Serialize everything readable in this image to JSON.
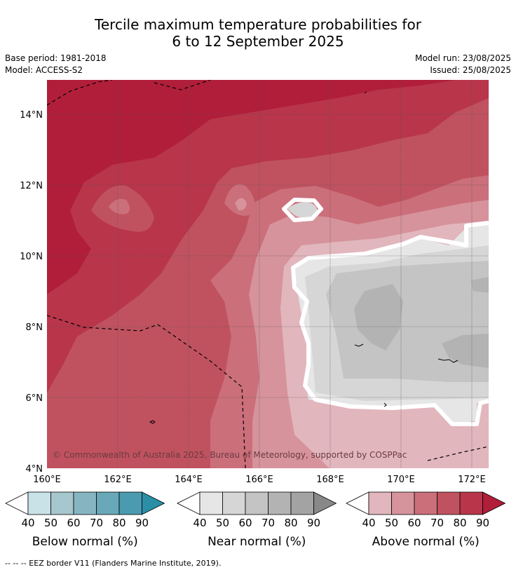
{
  "header": {
    "title_line1": "Tercile maximum temperature probabilities for",
    "title_line2": "6 to 12 September 2025",
    "base_period": "Base period: 1981-2018",
    "model": "Model: ACCESS-S2",
    "model_run": "Model run: 23/08/2025",
    "issued": "Issued: 25/08/2025"
  },
  "map": {
    "lat_labels": [
      "14°N",
      "12°N",
      "10°N",
      "8°N",
      "6°N",
      "4°N"
    ],
    "lon_labels": [
      "160°E",
      "162°E",
      "164°E",
      "166°E",
      "168°E",
      "170°E",
      "172°E"
    ],
    "watermark": "© Commonwealth of Australia 2025, Bureau of Meteorology, supported by COSPPac"
  },
  "colorbars": [
    {
      "title": "Below normal (%)",
      "ticks": [
        "40",
        "50",
        "60",
        "70",
        "80",
        "90"
      ],
      "colors": [
        "#ffffff",
        "#c9e2e8",
        "#a6c7cd",
        "#86b5c2",
        "#69a8b8",
        "#4b9bb0",
        "#2a8fa6"
      ]
    },
    {
      "title": "Near normal (%)",
      "ticks": [
        "40",
        "50",
        "60",
        "70",
        "80",
        "90"
      ],
      "colors": [
        "#ffffff",
        "#e6e6e6",
        "#d6d6d6",
        "#c4c4c4",
        "#b3b3b3",
        "#a3a3a3",
        "#888888"
      ]
    },
    {
      "title": "Above normal (%)",
      "ticks": [
        "40",
        "50",
        "60",
        "70",
        "80",
        "90"
      ],
      "colors": [
        "#ffffff",
        "#e2b6bd",
        "#d6939c",
        "#cb6f7b",
        "#c0525f",
        "#b8354a",
        "#b01e3a"
      ]
    }
  ],
  "footnote": "--  --  -- EEZ border V11 (Flanders Marine Institute, 2019)."
}
